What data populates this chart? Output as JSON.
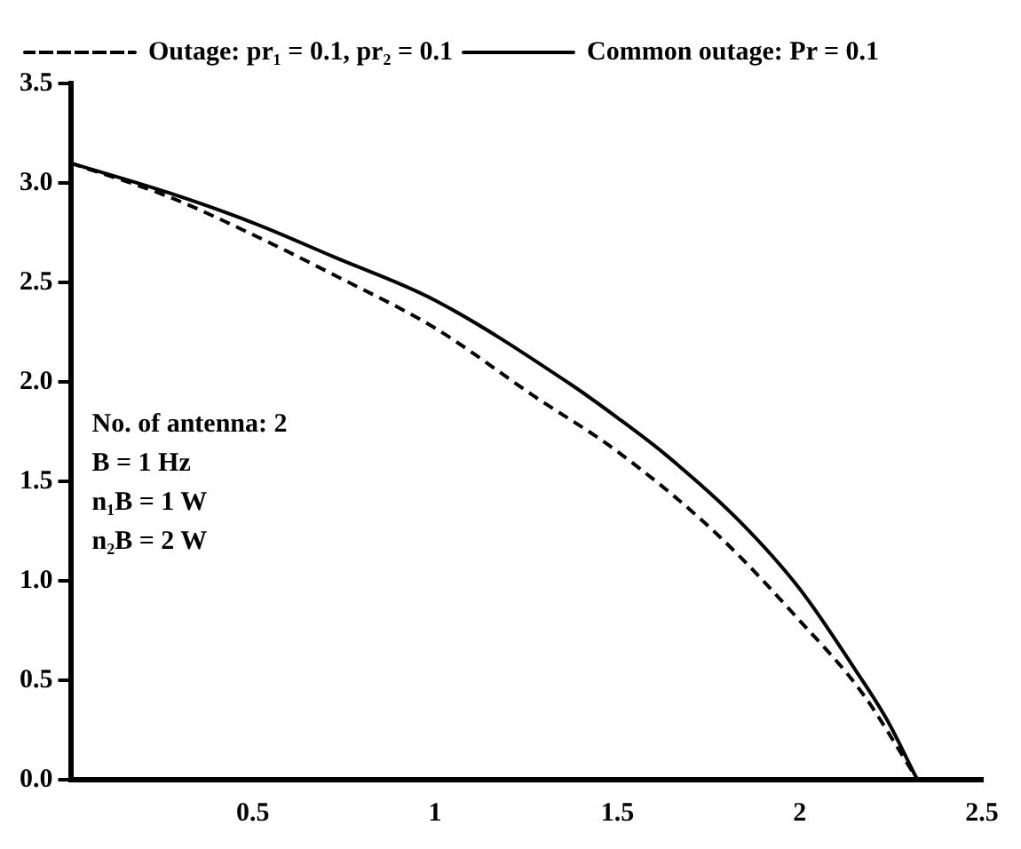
{
  "chart_data": {
    "type": "line",
    "xlim": [
      0,
      2.5
    ],
    "xticks": [
      0.5,
      1,
      1.5,
      2,
      2.5
    ],
    "ylim": [
      0,
      3.5
    ],
    "yticks": [
      {
        "value": 0,
        "label": "0.0"
      },
      {
        "value": 0.5,
        "label": "0.5"
      },
      {
        "value": 1,
        "label": "1.0"
      },
      {
        "value": 1.5,
        "label": "1.5"
      },
      {
        "value": 2,
        "label": "2.0"
      },
      {
        "value": 2.5,
        "label": "2.5"
      },
      {
        "value": 3,
        "label": "3.0"
      },
      {
        "value": 3.5,
        "label": "3.5"
      }
    ],
    "grid": false,
    "legend": "top left",
    "marker": "none",
    "series": [
      {
        "name": "Outage: pr₁ = 0.1, pr₂ = 0.1",
        "color": "#000000",
        "line_style": "dashed",
        "x": [
          0,
          0.27,
          0.5,
          0.72,
          1.0,
          1.27,
          1.5,
          1.77,
          2.0,
          2.17,
          2.32
        ],
        "values": [
          3.1,
          2.93,
          2.74,
          2.54,
          2.27,
          1.93,
          1.65,
          1.24,
          0.8,
          0.44,
          0.01
        ]
      },
      {
        "name": "Common outage: Pr = 0.1",
        "color": "#000000",
        "line_style": "solid",
        "x": [
          0,
          0.27,
          0.5,
          0.72,
          1.0,
          1.37,
          1.5,
          1.635,
          1.835,
          2.0,
          2.15,
          2.24,
          2.32
        ],
        "values": [
          3.1,
          2.95,
          2.8,
          2.63,
          2.41,
          1.99,
          1.82,
          1.63,
          1.3,
          0.96,
          0.56,
          0.3,
          0.01
        ]
      }
    ],
    "annotations": [
      "No. of antenna: 2",
      "B = 1 Hz",
      "n₁B = 1 W",
      "n₂B = 2 W"
    ]
  }
}
